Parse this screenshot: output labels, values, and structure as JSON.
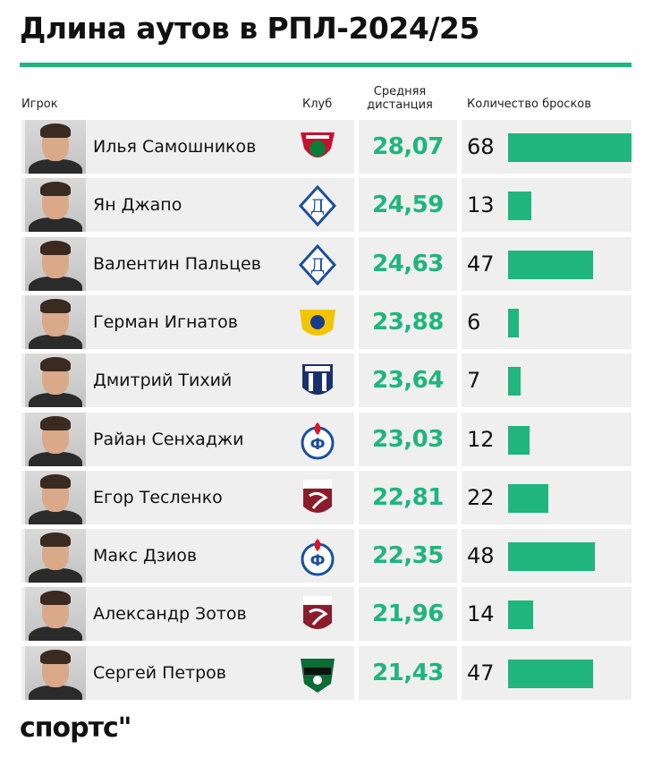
{
  "title": "Длина аутов в РПЛ-2024/25",
  "headers": {
    "player": "Игрок",
    "club": "Клуб",
    "avg": "Средняя дистанция",
    "count": "Количество бросков"
  },
  "brand": "спортс\"",
  "colors": {
    "accent": "#1fb57d",
    "row_bg": "#efefef"
  },
  "chart_data": {
    "type": "table",
    "title": "Длина аутов в РПЛ-2024/25",
    "columns": [
      "Игрок",
      "Клуб",
      "Средняя дистанция",
      "Количество бросков"
    ],
    "rows": [
      {
        "player": "Илья Самошников",
        "club_icon": "lokomotiv-logo",
        "avg": "28,07",
        "count": 68
      },
      {
        "player": "Ян Джапо",
        "club_icon": "dynamo-logo",
        "avg": "24,59",
        "count": 13
      },
      {
        "player": "Валентин Пальцев",
        "club_icon": "dynamo-logo",
        "avg": "24,63",
        "count": 47
      },
      {
        "player": "Герман Игнатов",
        "club_icon": "rostov-logo",
        "avg": "23,88",
        "count": 6
      },
      {
        "player": "Дмитрий Тихий",
        "club_icon": "pari-nn-logo",
        "avg": "23,64",
        "count": 7
      },
      {
        "player": "Райан Сенхаджи",
        "club_icon": "fakel-logo",
        "avg": "23,03",
        "count": 12
      },
      {
        "player": "Егор Тесленко",
        "club_icon": "rubin-logo",
        "avg": "22,81",
        "count": 22
      },
      {
        "player": "Макс Дзиов",
        "club_icon": "fakel-logo",
        "avg": "22,35",
        "count": 48
      },
      {
        "player": "Александр Зотов",
        "club_icon": "rubin-logo",
        "avg": "21,96",
        "count": 14
      },
      {
        "player": "Сергей Петров",
        "club_icon": "krasnodar-logo",
        "avg": "21,43",
        "count": 47
      }
    ],
    "bar_max": 68
  }
}
